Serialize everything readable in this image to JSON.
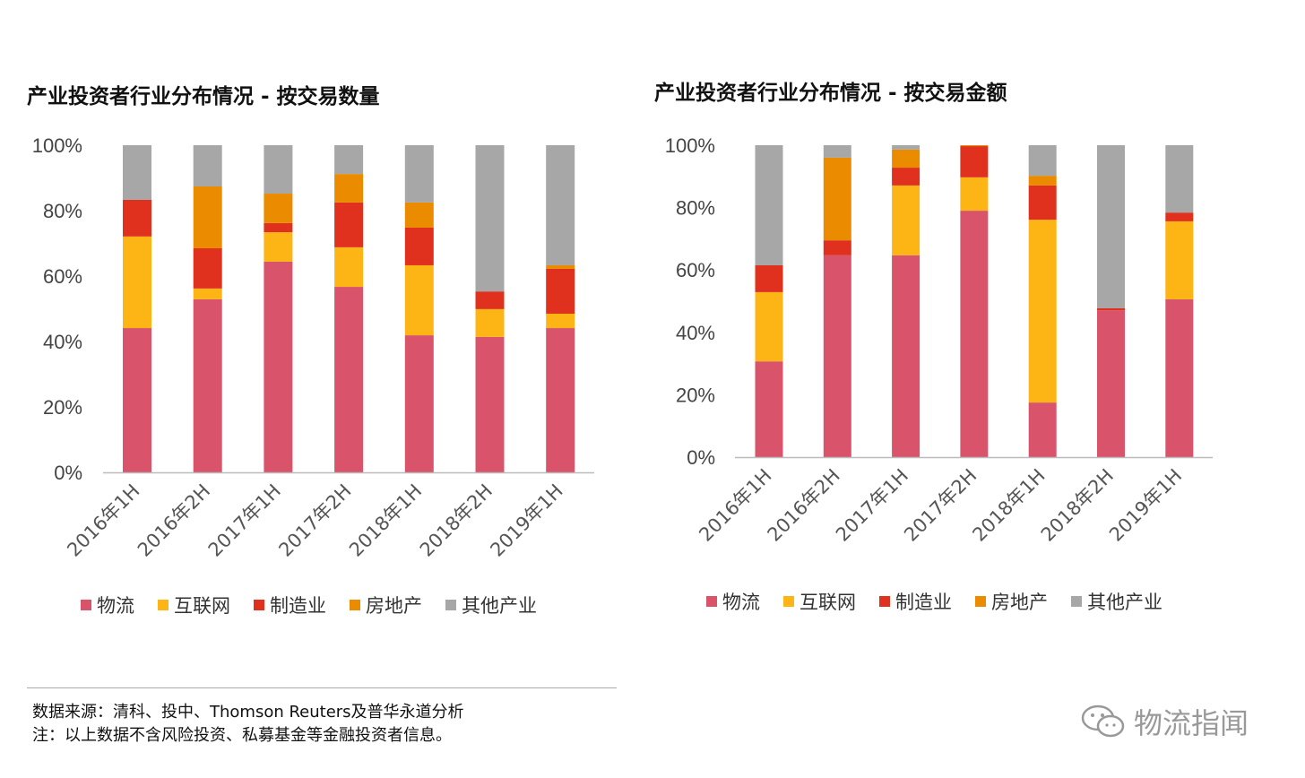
{
  "colors": {
    "物流": "#d9546b",
    "互联网": "#fdb515",
    "制造业": "#e0301e",
    "房地产": "#eb8c00",
    "其他产业": "#a7a7a7"
  },
  "chart_data": [
    {
      "type": "bar",
      "stacked": true,
      "title": "产业投资者行业分布情况 - 按交易数量",
      "categories": [
        "2016年1H",
        "2016年2H",
        "2017年1H",
        "2017年2H",
        "2018年1H",
        "2018年2H",
        "2019年1H"
      ],
      "yticks": [
        "0%",
        "20%",
        "40%",
        "60%",
        "80%",
        "100%"
      ],
      "ylim": [
        0,
        100
      ],
      "grid": false,
      "legend_position": "bottom",
      "series": [
        {
          "name": "物流",
          "values": [
            44.1,
            52.9,
            64.4,
            56.7,
            41.9,
            41.4,
            44.1
          ]
        },
        {
          "name": "互联网",
          "values": [
            28.0,
            3.3,
            9.0,
            12.1,
            21.4,
            8.5,
            4.4
          ]
        },
        {
          "name": "制造业",
          "values": [
            11.2,
            12.3,
            2.8,
            13.7,
            11.5,
            5.4,
            13.7
          ]
        },
        {
          "name": "房地产",
          "values": [
            0,
            18.9,
            9.0,
            8.7,
            7.7,
            0,
            1.1
          ]
        },
        {
          "name": "其他产业",
          "values": [
            16.7,
            12.6,
            14.8,
            8.8,
            17.5,
            44.7,
            36.7
          ]
        }
      ]
    },
    {
      "type": "bar",
      "stacked": true,
      "title": "产业投资者行业分布情况 - 按交易金额",
      "categories": [
        "2016年1H",
        "2016年2H",
        "2017年1H",
        "2017年2H",
        "2018年1H",
        "2018年2H",
        "2019年1H"
      ],
      "yticks": [
        "0%",
        "20%",
        "40%",
        "60%",
        "80%",
        "100%"
      ],
      "ylim": [
        0,
        100
      ],
      "grid": false,
      "legend_position": "bottom",
      "series": [
        {
          "name": "物流",
          "values": [
            30.7,
            64.7,
            64.7,
            79.0,
            17.5,
            47.1,
            50.6
          ]
        },
        {
          "name": "互联网",
          "values": [
            22.2,
            0,
            22.4,
            10.7,
            58.6,
            0,
            25.0
          ]
        },
        {
          "name": "制造业",
          "values": [
            8.6,
            4.8,
            5.7,
            10.0,
            11.0,
            0.6,
            2.8
          ]
        },
        {
          "name": "房地产",
          "values": [
            0,
            26.5,
            5.8,
            0.3,
            3.1,
            0,
            0
          ]
        },
        {
          "name": "其他产业",
          "values": [
            38.5,
            4.0,
            1.4,
            0,
            9.8,
            52.3,
            21.6
          ]
        }
      ]
    }
  ],
  "footer": {
    "source": "数据来源：清科、投中、Thomson Reuters及普华永道分析",
    "note": "注：以上数据不含风险投资、私募基金等金融投资者信息。"
  },
  "watermark": {
    "text": "物流指闻",
    "icon": "wechat-icon"
  }
}
